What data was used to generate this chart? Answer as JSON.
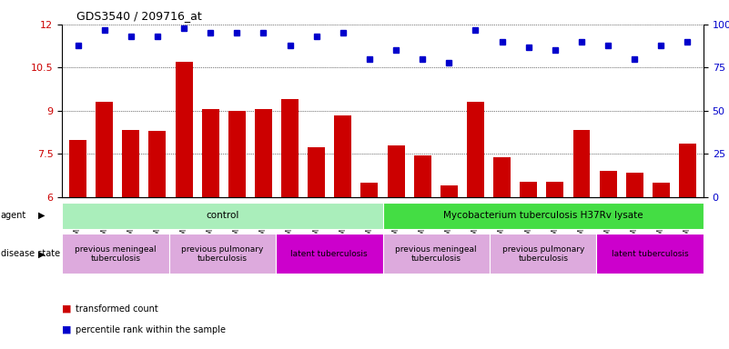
{
  "title": "GDS3540 / 209716_at",
  "samples": [
    "GSM280335",
    "GSM280341",
    "GSM280351",
    "GSM280353",
    "GSM280333",
    "GSM280339",
    "GSM280347",
    "GSM280349",
    "GSM280331",
    "GSM280337",
    "GSM280343",
    "GSM280345",
    "GSM280336",
    "GSM280342",
    "GSM280352",
    "GSM280354",
    "GSM280334",
    "GSM280340",
    "GSM280348",
    "GSM280350",
    "GSM280332",
    "GSM280338",
    "GSM280344",
    "GSM280346"
  ],
  "bar_values": [
    8.0,
    9.3,
    8.35,
    8.3,
    10.7,
    9.05,
    9.0,
    9.05,
    9.4,
    7.75,
    8.85,
    6.5,
    7.8,
    7.45,
    6.4,
    9.3,
    7.4,
    6.55,
    6.55,
    8.35,
    6.9,
    6.85,
    6.5,
    7.85
  ],
  "percentile_values": [
    88,
    97,
    93,
    93,
    98,
    95,
    95,
    95,
    88,
    93,
    95,
    80,
    85,
    80,
    78,
    97,
    90,
    87,
    85,
    90,
    88,
    80,
    88,
    90
  ],
  "ylim_left": [
    6,
    12
  ],
  "ylim_right": [
    0,
    100
  ],
  "yticks_left": [
    6,
    7.5,
    9,
    10.5,
    12
  ],
  "yticks_right": [
    0,
    25,
    50,
    75,
    100
  ],
  "bar_color": "#cc0000",
  "dot_color": "#0000cc",
  "agent_groups": [
    {
      "label": "control",
      "start": 0,
      "end": 11,
      "color": "#aaeebb"
    },
    {
      "label": "Mycobacterium tuberculosis H37Rv lysate",
      "start": 12,
      "end": 23,
      "color": "#44dd44"
    }
  ],
  "disease_groups": [
    {
      "label": "previous meningeal\ntuberculosis",
      "start": 0,
      "end": 3,
      "color": "#ddaadd"
    },
    {
      "label": "previous pulmonary\ntuberculosis",
      "start": 4,
      "end": 7,
      "color": "#ddaadd"
    },
    {
      "label": "latent tuberculosis",
      "start": 8,
      "end": 11,
      "color": "#cc00cc"
    },
    {
      "label": "previous meningeal\ntuberculosis",
      "start": 12,
      "end": 15,
      "color": "#ddaadd"
    },
    {
      "label": "previous pulmonary\ntuberculosis",
      "start": 16,
      "end": 19,
      "color": "#ddaadd"
    },
    {
      "label": "latent tuberculosis",
      "start": 20,
      "end": 23,
      "color": "#cc00cc"
    }
  ]
}
